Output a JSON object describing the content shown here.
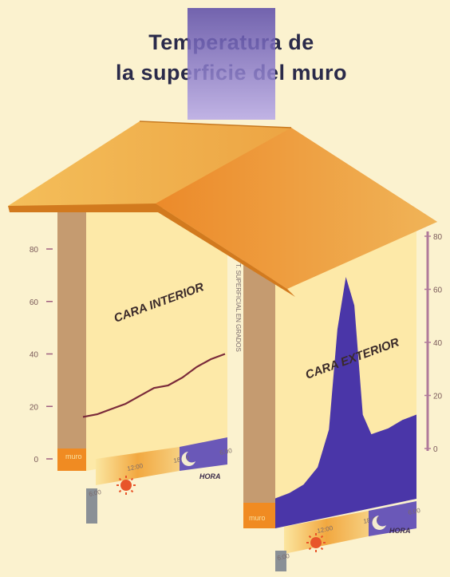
{
  "title": {
    "line1": "Temperatura de",
    "line2": "la superficie del muro"
  },
  "colors": {
    "background": "#fbf2cf",
    "title_band": "#6a5ab8",
    "roof_top": "#f2b348",
    "roof_front": "#e88a28",
    "wall_orange": "#f08b22",
    "wall_gray": "#9aa3a8",
    "panel_fill": "#fde9a8",
    "temperature_curve": "#7a2a3a",
    "purple_fill": "#4a36a8",
    "axis_line": "#a06080"
  },
  "left_panel": {
    "face_label": "CARA INTERIOR",
    "y_ticks": [
      "80",
      "60",
      "40",
      "20",
      "0"
    ],
    "axis_caption": "T. SUPERFICIAL EN GRADOS",
    "corner_label": "muro",
    "time_ticks": [
      "6:00",
      "12:00",
      "18:00",
      "6:00"
    ],
    "hora_label": "HORA",
    "temperature_curve": {
      "unit": "°C",
      "points": [
        [
          0,
          16
        ],
        [
          10,
          17
        ],
        [
          20,
          19
        ],
        [
          30,
          21
        ],
        [
          40,
          24
        ],
        [
          50,
          27
        ],
        [
          60,
          28
        ],
        [
          70,
          31
        ],
        [
          80,
          35
        ],
        [
          90,
          38
        ],
        [
          100,
          40
        ]
      ]
    }
  },
  "right_panel": {
    "face_label": "CARA EXTERIOR",
    "y_ticks": [
      "80",
      "60",
      "40",
      "20",
      "0"
    ],
    "corner_label": "muro",
    "time_ticks": [
      "6:00",
      "12:00",
      "18:00",
      "6:00"
    ],
    "hora_label": "HORA",
    "temperature_curve": {
      "unit": "°C",
      "points": [
        [
          0,
          2
        ],
        [
          10,
          3
        ],
        [
          20,
          5
        ],
        [
          30,
          10
        ],
        [
          38,
          22
        ],
        [
          44,
          55
        ],
        [
          50,
          72
        ],
        [
          56,
          62
        ],
        [
          62,
          25
        ],
        [
          68,
          18
        ],
        [
          80,
          19
        ],
        [
          90,
          21
        ],
        [
          100,
          22
        ]
      ]
    }
  },
  "icons": [
    "sun-icon",
    "moon-icon"
  ]
}
